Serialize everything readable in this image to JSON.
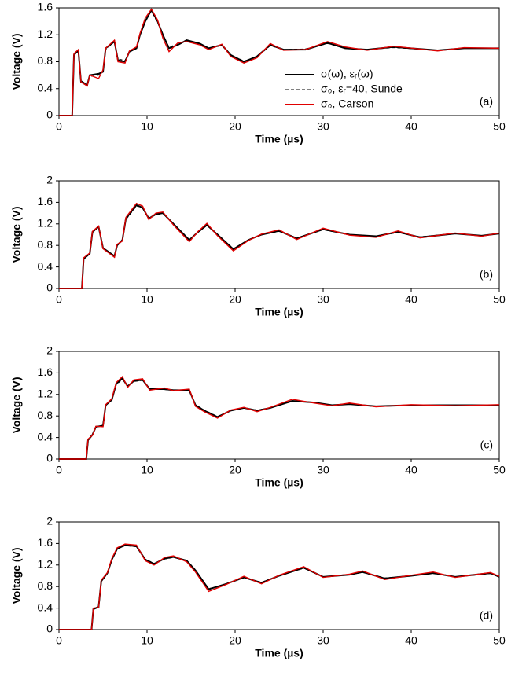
{
  "chart_data": [
    {
      "type": "line",
      "panel_label": "(a)",
      "xlabel": "Time (µs)",
      "ylabel": "Voltage (V)",
      "legend": "right",
      "xlim": [
        0,
        50
      ],
      "xticks": [
        0,
        10,
        20,
        30,
        40,
        50
      ],
      "ylim": [
        0,
        1.6
      ],
      "yticks": [
        0,
        0.4,
        0.8,
        1.2,
        1.6
      ],
      "x": [
        0,
        1.5,
        1.7,
        2.2,
        2.5,
        3.2,
        3.5,
        4.5,
        5,
        5.3,
        6.3,
        6.7,
        7.5,
        8,
        8.8,
        9.2,
        9.8,
        10.5,
        11.2,
        11.8,
        12.5,
        13.5,
        14.5,
        16,
        17,
        18.5,
        19.5,
        21,
        22.5,
        24,
        25.5,
        28,
        30.5,
        32.5,
        35,
        38,
        43,
        46,
        50
      ],
      "series": [
        {
          "name": "σ(ω), εᵣ(ω)",
          "color": "#000000",
          "linestyle": "solid",
          "values": [
            0,
            0,
            0.9,
            0.97,
            0.5,
            0.45,
            0.6,
            0.62,
            0.65,
            1.0,
            1.1,
            0.82,
            0.8,
            0.95,
            1.0,
            1.2,
            1.4,
            1.57,
            1.4,
            1.2,
            1.0,
            1.05,
            1.12,
            1.07,
            1.0,
            1.05,
            0.9,
            0.8,
            0.88,
            1.05,
            0.98,
            0.98,
            1.08,
            1.0,
            0.98,
            1.02,
            0.97,
            1.0,
            1.0
          ]
        },
        {
          "name": "σ₀, εᵣ=40, Sunde",
          "color": "#000000",
          "linestyle": "dashed",
          "values": [
            0,
            0,
            0.88,
            0.96,
            0.52,
            0.46,
            0.58,
            0.6,
            0.66,
            0.98,
            1.1,
            0.84,
            0.82,
            0.94,
            1.0,
            1.22,
            1.42,
            1.55,
            1.38,
            1.18,
            1.02,
            1.06,
            1.11,
            1.06,
            1.0,
            1.04,
            0.9,
            0.81,
            0.87,
            1.04,
            0.98,
            0.99,
            1.07,
            1.01,
            0.98,
            1.01,
            0.97,
            1.0,
            1.0
          ]
        },
        {
          "name": "σ₀, Carson",
          "color": "#e00000",
          "linestyle": "solid",
          "values": [
            0,
            0,
            0.92,
            0.98,
            0.5,
            0.44,
            0.6,
            0.55,
            0.68,
            1.0,
            1.12,
            0.8,
            0.78,
            0.96,
            1.02,
            1.22,
            1.45,
            1.58,
            1.42,
            1.15,
            0.95,
            1.08,
            1.1,
            1.05,
            0.98,
            1.06,
            0.88,
            0.78,
            0.86,
            1.07,
            0.97,
            0.98,
            1.1,
            1.02,
            0.97,
            1.03,
            0.96,
            1.01,
            1.0
          ]
        }
      ]
    },
    {
      "type": "line",
      "panel_label": "(b)",
      "xlabel": "Time (µs)",
      "ylabel": "Voltage (V)",
      "xlim": [
        0,
        50
      ],
      "xticks": [
        0,
        10,
        20,
        30,
        40,
        50
      ],
      "ylim": [
        0,
        2
      ],
      "yticks": [
        0,
        0.4,
        0.8,
        1.2,
        1.6,
        2
      ],
      "x": [
        0,
        2.6,
        2.8,
        3.5,
        3.8,
        4.5,
        5,
        6.3,
        6.6,
        7.2,
        7.6,
        8.8,
        9.5,
        10.2,
        11,
        11.8,
        13,
        14.8,
        15.8,
        16.8,
        18,
        19.8,
        21.5,
        23,
        25,
        27,
        30,
        33,
        36,
        38.5,
        41,
        45,
        48,
        50
      ],
      "series": [
        {
          "color": "#000000",
          "linestyle": "solid",
          "values": [
            0,
            0,
            0.55,
            0.65,
            1.05,
            1.15,
            0.75,
            0.6,
            0.8,
            0.9,
            1.3,
            1.55,
            1.5,
            1.3,
            1.38,
            1.4,
            1.2,
            0.9,
            1.05,
            1.18,
            1.0,
            0.73,
            0.9,
            1.0,
            1.07,
            0.93,
            1.1,
            1.0,
            0.97,
            1.05,
            0.95,
            1.02,
            0.98,
            1.02
          ]
        },
        {
          "color": "#000000",
          "linestyle": "dashed",
          "values": [
            0,
            0,
            0.56,
            0.64,
            1.04,
            1.14,
            0.76,
            0.61,
            0.79,
            0.91,
            1.28,
            1.53,
            1.51,
            1.31,
            1.37,
            1.39,
            1.21,
            0.91,
            1.04,
            1.17,
            1.01,
            0.74,
            0.9,
            1.0,
            1.06,
            0.94,
            1.09,
            1.0,
            0.97,
            1.04,
            0.96,
            1.02,
            0.98,
            1.02
          ]
        },
        {
          "color": "#e00000",
          "linestyle": "solid",
          "values": [
            0,
            0,
            0.57,
            0.66,
            1.06,
            1.16,
            0.74,
            0.58,
            0.82,
            0.88,
            1.32,
            1.58,
            1.53,
            1.28,
            1.4,
            1.42,
            1.18,
            0.87,
            1.06,
            1.21,
            0.98,
            0.7,
            0.89,
            1.01,
            1.09,
            0.91,
            1.12,
            0.99,
            0.95,
            1.07,
            0.94,
            1.03,
            0.97,
            1.03
          ]
        }
      ]
    },
    {
      "type": "line",
      "panel_label": "(c)",
      "xlabel": "Time (µs)",
      "ylabel": "Voltage (V)",
      "xlim": [
        0,
        50
      ],
      "xticks": [
        0,
        10,
        20,
        30,
        40,
        50
      ],
      "ylim": [
        0,
        2
      ],
      "yticks": [
        0,
        0.4,
        0.8,
        1.2,
        1.6,
        2
      ],
      "x": [
        0,
        3.1,
        3.3,
        3.8,
        4.2,
        5,
        5.3,
        6,
        6.5,
        7.2,
        7.8,
        8.5,
        9.5,
        10.3,
        12,
        13,
        14.8,
        15.5,
        16.5,
        18,
        19.5,
        21,
        22.5,
        24,
        26.5,
        29,
        31,
        33,
        36,
        40,
        45,
        50
      ],
      "series": [
        {
          "color": "#000000",
          "linestyle": "solid",
          "values": [
            0,
            0,
            0.35,
            0.45,
            0.6,
            0.62,
            1.0,
            1.1,
            1.4,
            1.5,
            1.35,
            1.45,
            1.47,
            1.3,
            1.3,
            1.28,
            1.28,
            1.0,
            0.9,
            0.78,
            0.9,
            0.95,
            0.9,
            0.95,
            1.08,
            1.05,
            1.0,
            1.02,
            0.98,
            1.0,
            1.0,
            1.0
          ]
        },
        {
          "color": "#000000",
          "linestyle": "dashed",
          "values": [
            0,
            0,
            0.36,
            0.46,
            0.59,
            0.63,
            0.99,
            1.1,
            1.38,
            1.48,
            1.36,
            1.44,
            1.46,
            1.31,
            1.29,
            1.28,
            1.27,
            1.01,
            0.91,
            0.79,
            0.9,
            0.95,
            0.91,
            0.95,
            1.07,
            1.05,
            1.0,
            1.02,
            0.98,
            1.0,
            1.0,
            1.0
          ]
        },
        {
          "color": "#e00000",
          "linestyle": "solid",
          "values": [
            0,
            0,
            0.37,
            0.44,
            0.61,
            0.6,
            1.01,
            1.12,
            1.42,
            1.53,
            1.33,
            1.47,
            1.49,
            1.28,
            1.32,
            1.27,
            1.3,
            0.98,
            0.88,
            0.76,
            0.91,
            0.96,
            0.88,
            0.96,
            1.11,
            1.04,
            0.99,
            1.04,
            0.97,
            1.01,
            0.99,
            1.01
          ]
        }
      ]
    },
    {
      "type": "line",
      "panel_label": "(d)",
      "xlabel": "Time (µs)",
      "ylabel": "Voltage (V)",
      "xlim": [
        0,
        50
      ],
      "xticks": [
        0,
        10,
        20,
        30,
        40,
        50
      ],
      "ylim": [
        0,
        2
      ],
      "yticks": [
        0,
        0.4,
        0.8,
        1.2,
        1.6,
        2
      ],
      "x": [
        0,
        3.7,
        3.9,
        4.5,
        4.8,
        5.5,
        6,
        6.6,
        7.5,
        8.8,
        9.8,
        10.8,
        12,
        13,
        14.5,
        15.5,
        17,
        19,
        21,
        23,
        25,
        27.8,
        30,
        33,
        34.5,
        37,
        40,
        42.5,
        45,
        49,
        50
      ],
      "series": [
        {
          "color": "#000000",
          "linestyle": "solid",
          "values": [
            0,
            0,
            0.38,
            0.42,
            0.9,
            1.05,
            1.3,
            1.5,
            1.57,
            1.55,
            1.3,
            1.22,
            1.32,
            1.35,
            1.28,
            1.1,
            0.75,
            0.85,
            0.97,
            0.87,
            1.0,
            1.15,
            0.98,
            1.02,
            1.07,
            0.95,
            1.0,
            1.05,
            0.98,
            1.05,
            0.98
          ]
        },
        {
          "color": "#000000",
          "linestyle": "dashed",
          "values": [
            0,
            0,
            0.39,
            0.43,
            0.89,
            1.04,
            1.29,
            1.49,
            1.56,
            1.54,
            1.31,
            1.23,
            1.31,
            1.34,
            1.29,
            1.11,
            0.76,
            0.85,
            0.96,
            0.88,
            1.0,
            1.14,
            0.98,
            1.02,
            1.06,
            0.96,
            1.0,
            1.04,
            0.98,
            1.04,
            0.98
          ]
        },
        {
          "color": "#e00000",
          "linestyle": "solid",
          "values": [
            0,
            0,
            0.4,
            0.41,
            0.92,
            1.06,
            1.32,
            1.52,
            1.59,
            1.57,
            1.28,
            1.2,
            1.34,
            1.37,
            1.26,
            1.07,
            0.71,
            0.84,
            0.99,
            0.85,
            1.01,
            1.17,
            0.97,
            1.03,
            1.09,
            0.93,
            1.01,
            1.07,
            0.97,
            1.06,
            0.99
          ]
        }
      ]
    }
  ]
}
